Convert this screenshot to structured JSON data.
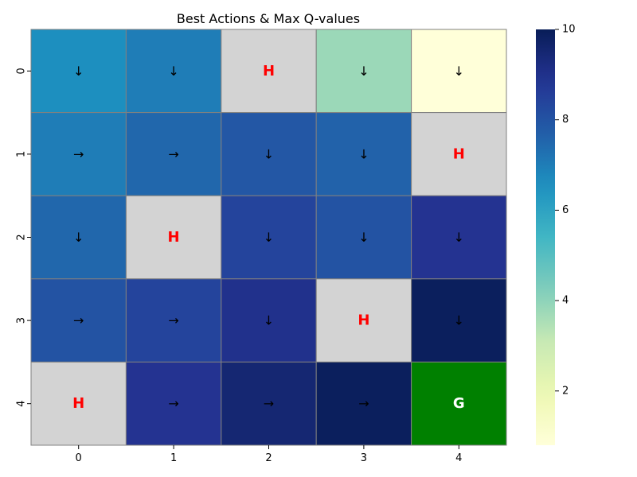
{
  "chart_data": {
    "type": "heatmap",
    "title": "Best Actions & Max Q-values",
    "xlabel": "",
    "ylabel": "",
    "x_ticks": [
      "0",
      "1",
      "2",
      "3",
      "4"
    ],
    "y_ticks": [
      "0",
      "1",
      "2",
      "3",
      "4"
    ],
    "values": [
      [
        6.6,
        7.0,
        null,
        3.8,
        0.8
      ],
      [
        7.0,
        7.5,
        7.9,
        7.6,
        null
      ],
      [
        7.5,
        null,
        8.4,
        8.0,
        8.9
      ],
      [
        8.0,
        8.4,
        9.0,
        null,
        9.9
      ],
      [
        null,
        8.9,
        9.5,
        9.9,
        null
      ]
    ],
    "labels": [
      [
        "↓",
        "↓",
        "H",
        "↓",
        "↓"
      ],
      [
        "→",
        "→",
        "↓",
        "↓",
        "H"
      ],
      [
        "↓",
        "H",
        "↓",
        "↓",
        "↓"
      ],
      [
        "→",
        "→",
        "↓",
        "H",
        "↓"
      ],
      [
        "H",
        "→",
        "→",
        "→",
        "G"
      ]
    ],
    "special_colors": {
      "H": "#d3d3d3",
      "G": "#008000"
    },
    "special_text_colors": {
      "H": "#ff0000",
      "G": "#ffffff"
    },
    "colormap": "YlGnBu",
    "colorbar": {
      "range": [
        0.8,
        10
      ],
      "ticks": [
        "2",
        "4",
        "6",
        "8",
        "10"
      ],
      "tick_values": [
        2,
        4,
        6,
        8,
        10
      ]
    },
    "grid_line_color": "#808080"
  }
}
